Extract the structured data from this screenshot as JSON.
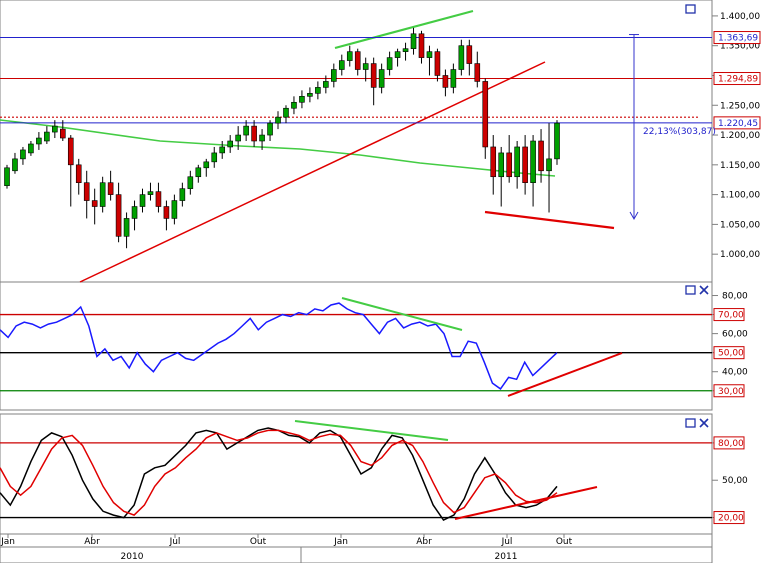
{
  "chart_data": [
    {
      "type": "candlestick",
      "name": "price",
      "yticks": [
        "1.400,00",
        "1.350,00",
        "1.300,00",
        "1.250,00",
        "1.200,00",
        "1.150,00",
        "1.100,00",
        "1.050,00",
        "1.000,00"
      ],
      "ylim": [
        960,
        1420
      ],
      "levels": [
        {
          "value": 1363.69,
          "label": "1.363,69",
          "color": "#2222cc"
        },
        {
          "value": 1294.89,
          "label": "1.294,89",
          "color": "#cc0000"
        },
        {
          "value": 1220.45,
          "label": "1.220,45",
          "color": "#2222cc"
        }
      ],
      "measure_label": "22,13%(303,87)",
      "candles": [
        [
          1115,
          1150,
          1110,
          1145
        ],
        [
          1140,
          1170,
          1135,
          1160
        ],
        [
          1160,
          1180,
          1150,
          1175
        ],
        [
          1170,
          1190,
          1165,
          1185
        ],
        [
          1185,
          1205,
          1175,
          1195
        ],
        [
          1190,
          1215,
          1185,
          1205
        ],
        [
          1205,
          1225,
          1195,
          1215
        ],
        [
          1210,
          1225,
          1190,
          1195
        ],
        [
          1195,
          1200,
          1080,
          1150
        ],
        [
          1150,
          1160,
          1100,
          1120
        ],
        [
          1120,
          1140,
          1060,
          1090
        ],
        [
          1090,
          1110,
          1050,
          1080
        ],
        [
          1080,
          1130,
          1070,
          1120
        ],
        [
          1120,
          1140,
          1090,
          1100
        ],
        [
          1100,
          1120,
          1020,
          1030
        ],
        [
          1030,
          1070,
          1010,
          1060
        ],
        [
          1060,
          1090,
          1040,
          1080
        ],
        [
          1080,
          1110,
          1070,
          1100
        ],
        [
          1100,
          1120,
          1090,
          1105
        ],
        [
          1105,
          1120,
          1070,
          1080
        ],
        [
          1080,
          1090,
          1040,
          1060
        ],
        [
          1060,
          1100,
          1050,
          1090
        ],
        [
          1090,
          1120,
          1080,
          1110
        ],
        [
          1110,
          1140,
          1100,
          1130
        ],
        [
          1130,
          1150,
          1120,
          1145
        ],
        [
          1145,
          1160,
          1130,
          1155
        ],
        [
          1155,
          1180,
          1145,
          1170
        ],
        [
          1170,
          1190,
          1160,
          1180
        ],
        [
          1180,
          1200,
          1170,
          1190
        ],
        [
          1190,
          1215,
          1175,
          1200
        ],
        [
          1200,
          1225,
          1190,
          1215
        ],
        [
          1215,
          1225,
          1180,
          1190
        ],
        [
          1190,
          1210,
          1175,
          1200
        ],
        [
          1200,
          1225,
          1190,
          1220
        ],
        [
          1220,
          1240,
          1210,
          1230
        ],
        [
          1230,
          1250,
          1220,
          1245
        ],
        [
          1245,
          1265,
          1235,
          1255
        ],
        [
          1255,
          1275,
          1245,
          1265
        ],
        [
          1265,
          1280,
          1255,
          1270
        ],
        [
          1270,
          1290,
          1260,
          1280
        ],
        [
          1280,
          1300,
          1270,
          1290
        ],
        [
          1290,
          1320,
          1280,
          1310
        ],
        [
          1310,
          1335,
          1300,
          1325
        ],
        [
          1325,
          1350,
          1315,
          1340
        ],
        [
          1340,
          1345,
          1300,
          1310
        ],
        [
          1310,
          1330,
          1290,
          1320
        ],
        [
          1320,
          1330,
          1250,
          1280
        ],
        [
          1280,
          1320,
          1270,
          1310
        ],
        [
          1310,
          1340,
          1300,
          1330
        ],
        [
          1330,
          1345,
          1315,
          1340
        ],
        [
          1340,
          1355,
          1325,
          1345
        ],
        [
          1345,
          1380,
          1335,
          1370
        ],
        [
          1370,
          1375,
          1320,
          1330
        ],
        [
          1330,
          1350,
          1300,
          1340
        ],
        [
          1340,
          1345,
          1290,
          1300
        ],
        [
          1300,
          1310,
          1265,
          1280
        ],
        [
          1280,
          1320,
          1270,
          1310
        ],
        [
          1310,
          1360,
          1300,
          1350
        ],
        [
          1350,
          1360,
          1300,
          1320
        ],
        [
          1320,
          1340,
          1280,
          1290
        ],
        [
          1290,
          1295,
          1160,
          1180
        ],
        [
          1180,
          1200,
          1100,
          1130
        ],
        [
          1130,
          1180,
          1080,
          1170
        ],
        [
          1170,
          1200,
          1120,
          1130
        ],
        [
          1130,
          1190,
          1110,
          1180
        ],
        [
          1180,
          1200,
          1100,
          1120
        ],
        [
          1120,
          1200,
          1080,
          1190
        ],
        [
          1190,
          1210,
          1120,
          1140
        ],
        [
          1140,
          1220,
          1070,
          1160
        ],
        [
          1160,
          1225,
          1150,
          1220
        ]
      ]
    },
    {
      "type": "line",
      "name": "RSI",
      "yticks": [
        "80,00",
        "70,00",
        "60,00",
        "50,00",
        "40,00",
        "30,00"
      ],
      "ylim": [
        22,
        85
      ],
      "levels": [
        {
          "value": 70,
          "label": "70,00",
          "color": "#cc0000"
        },
        {
          "value": 50,
          "label": "50,00",
          "color": "#cc0000"
        },
        {
          "value": 30,
          "label": "30,00",
          "color": "#cc0000"
        }
      ],
      "series": [
        {
          "color": "#1a1aff",
          "values": [
            62,
            58,
            64,
            66,
            65,
            63,
            65,
            66,
            68,
            70,
            74,
            64,
            48,
            52,
            46,
            48,
            42,
            50,
            44,
            40,
            46,
            48,
            50,
            47,
            46,
            49,
            52,
            55,
            57,
            60,
            64,
            68,
            62,
            66,
            68,
            70,
            69,
            71,
            70,
            73,
            72,
            75,
            76,
            73,
            71,
            70,
            65,
            60,
            66,
            68,
            63,
            65,
            66,
            64,
            65,
            60,
            48,
            48,
            56,
            55,
            45,
            34,
            31,
            37,
            36,
            45,
            38,
            42,
            46,
            50
          ]
        }
      ]
    },
    {
      "type": "line",
      "name": "stochastic",
      "yticks": [
        "80,00",
        "50,00",
        "20,00"
      ],
      "ylim": [
        10,
        100
      ],
      "levels": [
        {
          "value": 80,
          "label": "80,00",
          "color": "#cc0000"
        },
        {
          "value": 20,
          "label": "20,00",
          "color": "#cc0000"
        }
      ],
      "series": [
        {
          "color": "#000000",
          "values": [
            40,
            30,
            45,
            65,
            82,
            88,
            85,
            70,
            50,
            35,
            25,
            22,
            20,
            30,
            55,
            60,
            62,
            70,
            78,
            88,
            90,
            88,
            75,
            80,
            85,
            90,
            92,
            90,
            86,
            85,
            80,
            88,
            90,
            85,
            70,
            55,
            60,
            75,
            86,
            84,
            70,
            50,
            30,
            18,
            22,
            35,
            55,
            68,
            55,
            40,
            30,
            28,
            30,
            35,
            45
          ]
        },
        {
          "color": "#e00000",
          "values": [
            60,
            45,
            38,
            45,
            60,
            75,
            84,
            86,
            78,
            62,
            45,
            32,
            25,
            22,
            30,
            45,
            55,
            60,
            68,
            75,
            84,
            88,
            85,
            82,
            84,
            88,
            90,
            90,
            88,
            86,
            82,
            85,
            87,
            86,
            78,
            65,
            62,
            68,
            78,
            82,
            78,
            65,
            48,
            32,
            24,
            28,
            40,
            52,
            55,
            48,
            38,
            33,
            32,
            34,
            40
          ]
        }
      ]
    }
  ],
  "xaxis": {
    "months": [
      "Jan",
      "Abr",
      "Jul",
      "Out",
      "Jan",
      "Abr",
      "Jul",
      "Out"
    ],
    "years": [
      "2010",
      "2011"
    ]
  },
  "colors": {
    "up": "#00a000",
    "down": "#cc0000",
    "grid": "#808080",
    "ma": "#44cc44",
    "trend": "#e00000"
  }
}
